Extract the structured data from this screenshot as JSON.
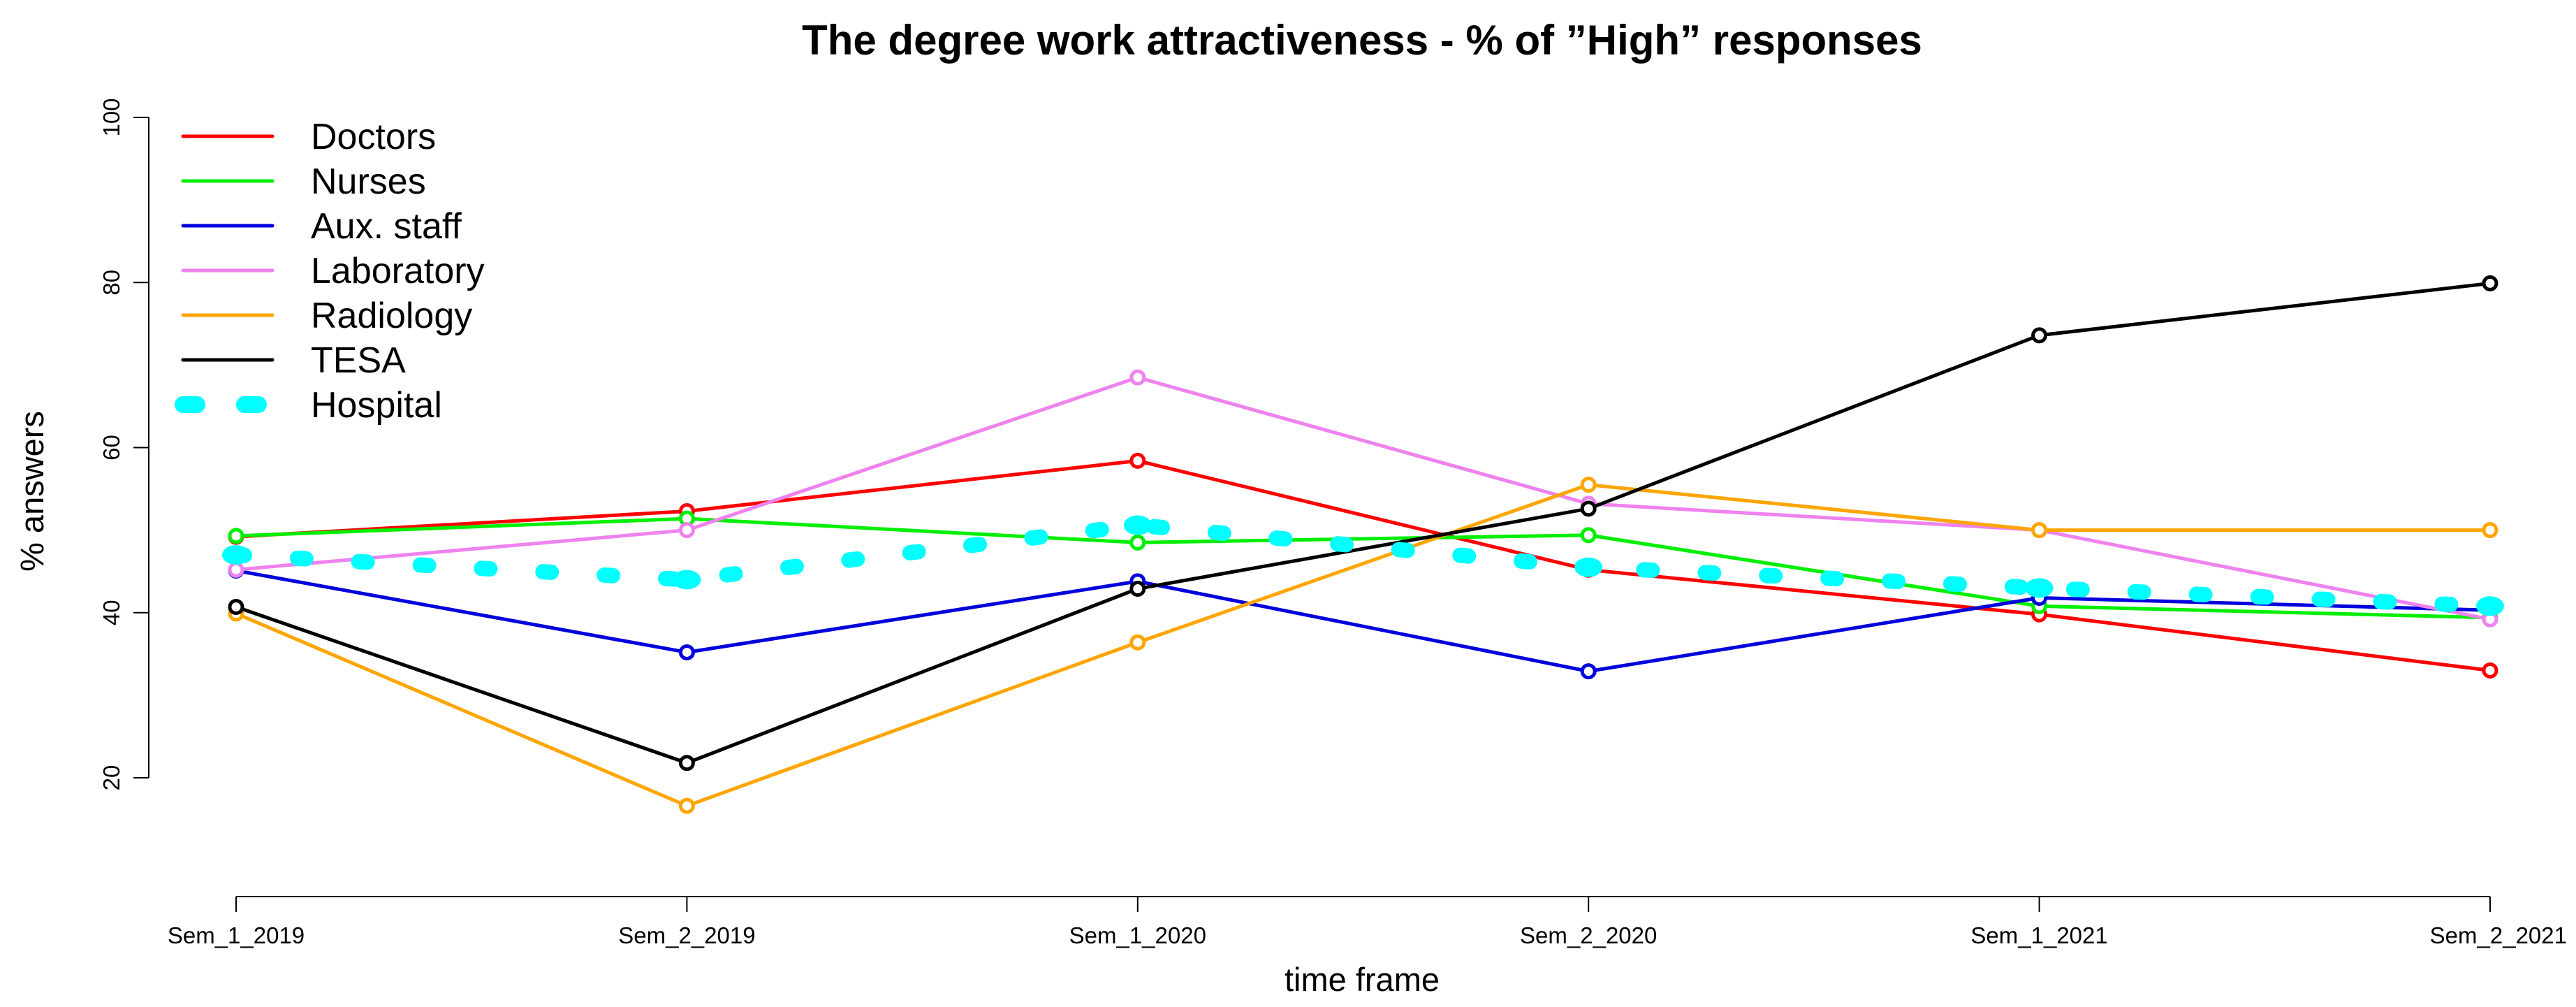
{
  "chart_data": {
    "type": "line",
    "title": "The degree work attractiveness - % of ”High” responses",
    "xlabel": "time frame",
    "ylabel": "% answers",
    "categories": [
      "Sem_1_2019",
      "Sem_2_2019",
      "Sem_1_2020",
      "Sem_2_2020",
      "Sem_1_2021",
      "Sem_2_2021"
    ],
    "ylim": [
      7,
      100
    ],
    "yticks": [
      20,
      40,
      60,
      80,
      100
    ],
    "grid": false,
    "legend_position": "top-left",
    "series": [
      {
        "name": "Doctors",
        "color": "#ff0000",
        "style": "solid",
        "values": [
          49.2,
          52.3,
          58.4,
          45.2,
          39.8,
          33.0
        ]
      },
      {
        "name": "Nurses",
        "color": "#00ee00",
        "style": "solid",
        "values": [
          49.3,
          51.4,
          48.5,
          49.4,
          40.8,
          39.4
        ]
      },
      {
        "name": "Aux. staff",
        "color": "#0000dd",
        "style": "solid",
        "values": [
          45.1,
          35.2,
          43.8,
          32.9,
          41.8,
          40.3
        ]
      },
      {
        "name": "Laboratory",
        "color": "#ee82ee",
        "style": "solid",
        "values": [
          45.2,
          50.0,
          68.5,
          53.2,
          50.0,
          39.2
        ]
      },
      {
        "name": "Radiology",
        "color": "#ffa500",
        "style": "solid",
        "values": [
          39.9,
          16.6,
          36.4,
          55.5,
          50.0,
          50.0
        ]
      },
      {
        "name": "TESA",
        "color": "#000000",
        "style": "solid",
        "values": [
          40.7,
          21.8,
          42.9,
          52.6,
          73.6,
          79.9
        ]
      },
      {
        "name": "Hospital",
        "color": "#00ffff",
        "style": "dashed",
        "values": [
          47.0,
          44.0,
          50.6,
          45.5,
          43.0,
          40.8
        ]
      }
    ]
  }
}
